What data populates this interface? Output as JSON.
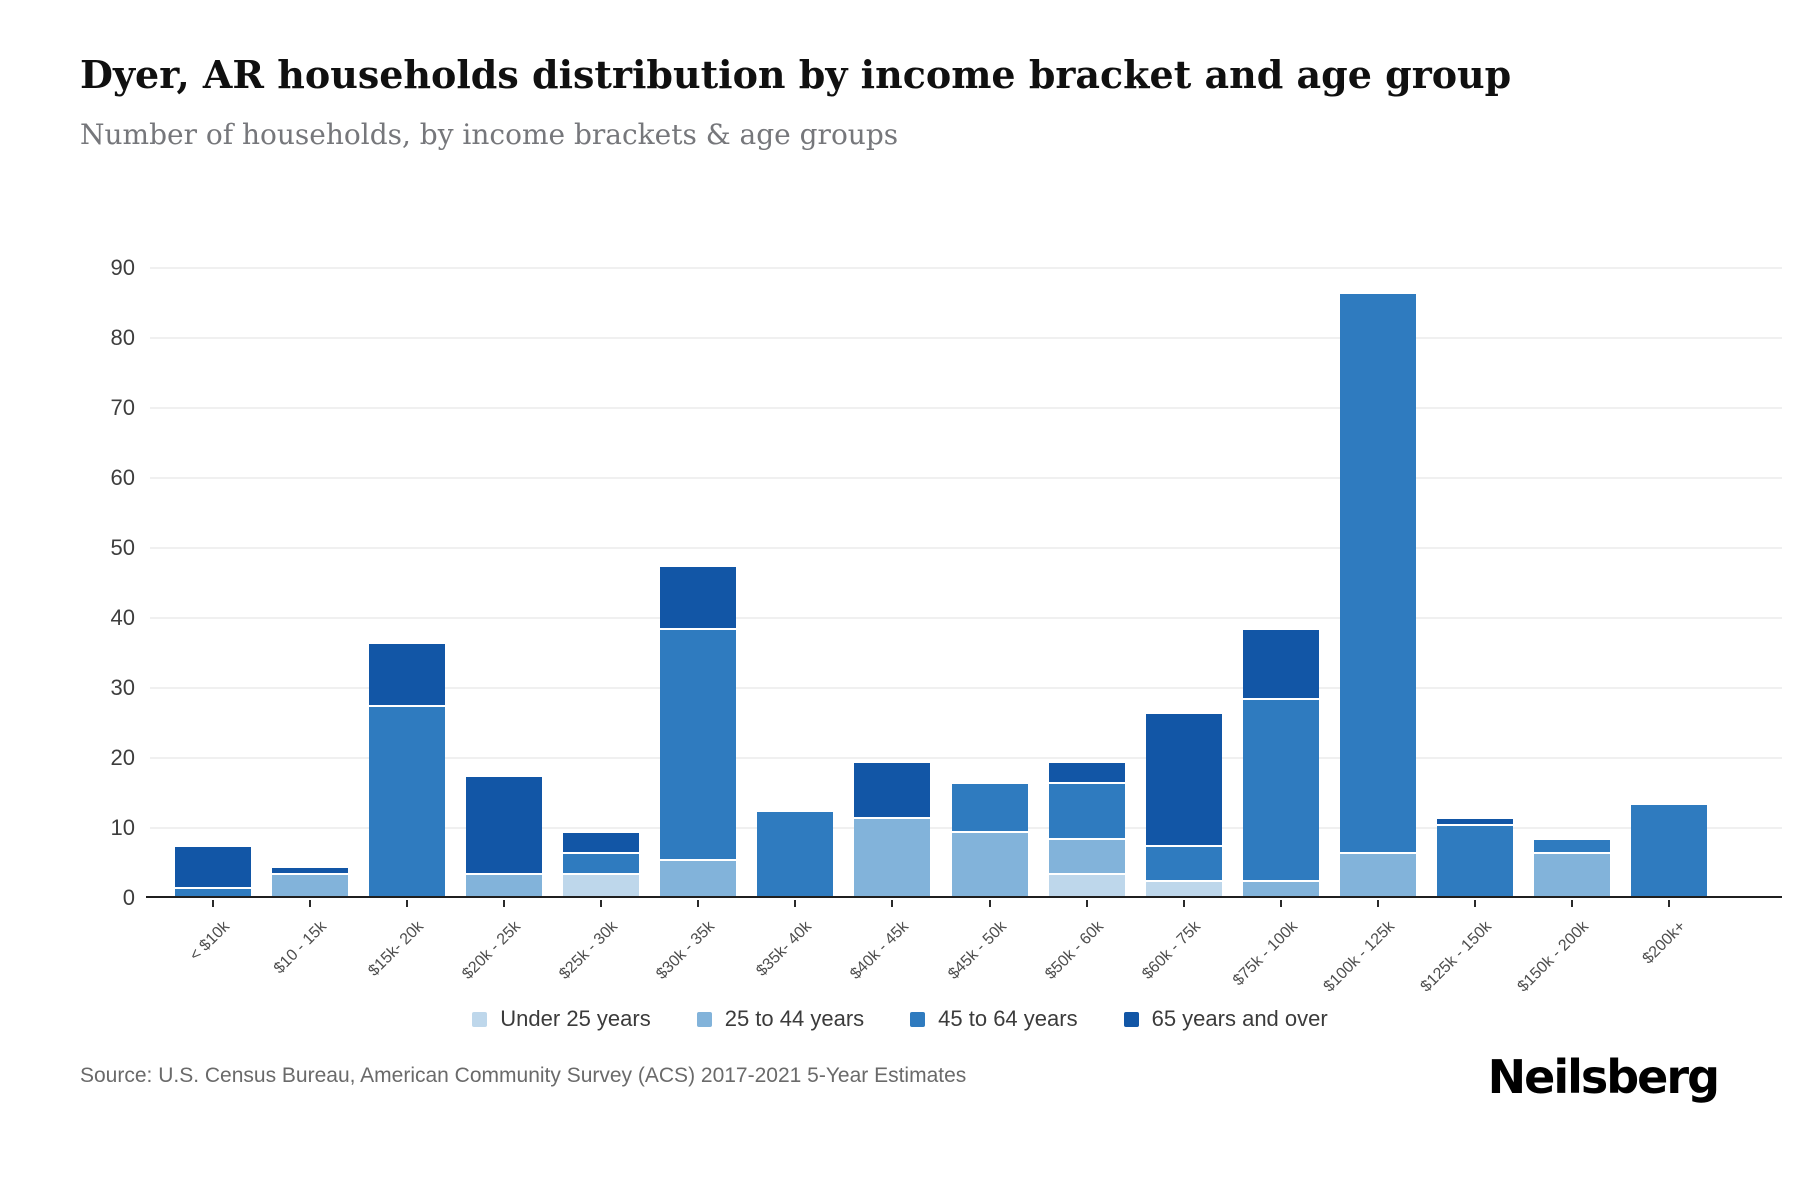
{
  "title": "Dyer, AR households distribution by income bracket and age group",
  "subtitle": "Number of households, by income brackets & age groups",
  "source": "Source: U.S. Census Bureau, American Community Survey (ACS) 2017-2021 5-Year Estimates",
  "logo": "Neilsberg",
  "colors": {
    "under_25": "#bed7eb",
    "25_to_44": "#82b3da",
    "45_to_64": "#2f7bbf",
    "65_and_over": "#1256a6",
    "gridline": "#f0f0f0",
    "axis": "#1f1f1f"
  },
  "chart_data": {
    "type": "bar",
    "stacked": true,
    "title": "Dyer, AR households distribution by income bracket and age group",
    "xlabel": "",
    "ylabel": "",
    "ylim": [
      0,
      90
    ],
    "yticks": [
      0,
      10,
      20,
      30,
      40,
      50,
      60,
      70,
      80,
      90
    ],
    "grid": true,
    "legend_position": "bottom",
    "categories": [
      "< $10k",
      "$10 - 15k",
      "$15k- 20k",
      "$20k - 25k",
      "$25k - 30k",
      "$30k - 35k",
      "$35k- 40k",
      "$40k - 45k",
      "$45k - 50k",
      "$50k - 60k",
      "$60k - 75k",
      "$75k - 100k",
      "$100k - 125k",
      "$125k - 150k",
      "$150k - 200k",
      "$200k+"
    ],
    "series": [
      {
        "name": "Under 25 years",
        "color": "#bed7eb",
        "values": [
          0,
          0,
          0,
          0,
          3,
          0,
          0,
          0,
          0,
          3,
          2,
          0,
          0,
          0,
          0,
          0
        ]
      },
      {
        "name": "25 to 44 years",
        "color": "#82b3da",
        "values": [
          0,
          3,
          0,
          3,
          0,
          5,
          0,
          11,
          9,
          5,
          0,
          2,
          6,
          0,
          6,
          0
        ]
      },
      {
        "name": "45 to 64 years",
        "color": "#2f7bbf",
        "values": [
          1,
          0,
          27,
          0,
          3,
          33,
          12,
          0,
          7,
          8,
          5,
          26,
          80,
          10,
          2,
          13
        ]
      },
      {
        "name": "65 years and over",
        "color": "#1256a6",
        "values": [
          6,
          1,
          9,
          14,
          3,
          9,
          0,
          8,
          0,
          3,
          19,
          10,
          0,
          1,
          0,
          0
        ]
      }
    ],
    "totals": [
      7,
      4,
      36,
      17,
      9,
      47,
      12,
      19,
      16,
      19,
      26,
      38,
      86,
      11,
      8,
      13
    ]
  }
}
